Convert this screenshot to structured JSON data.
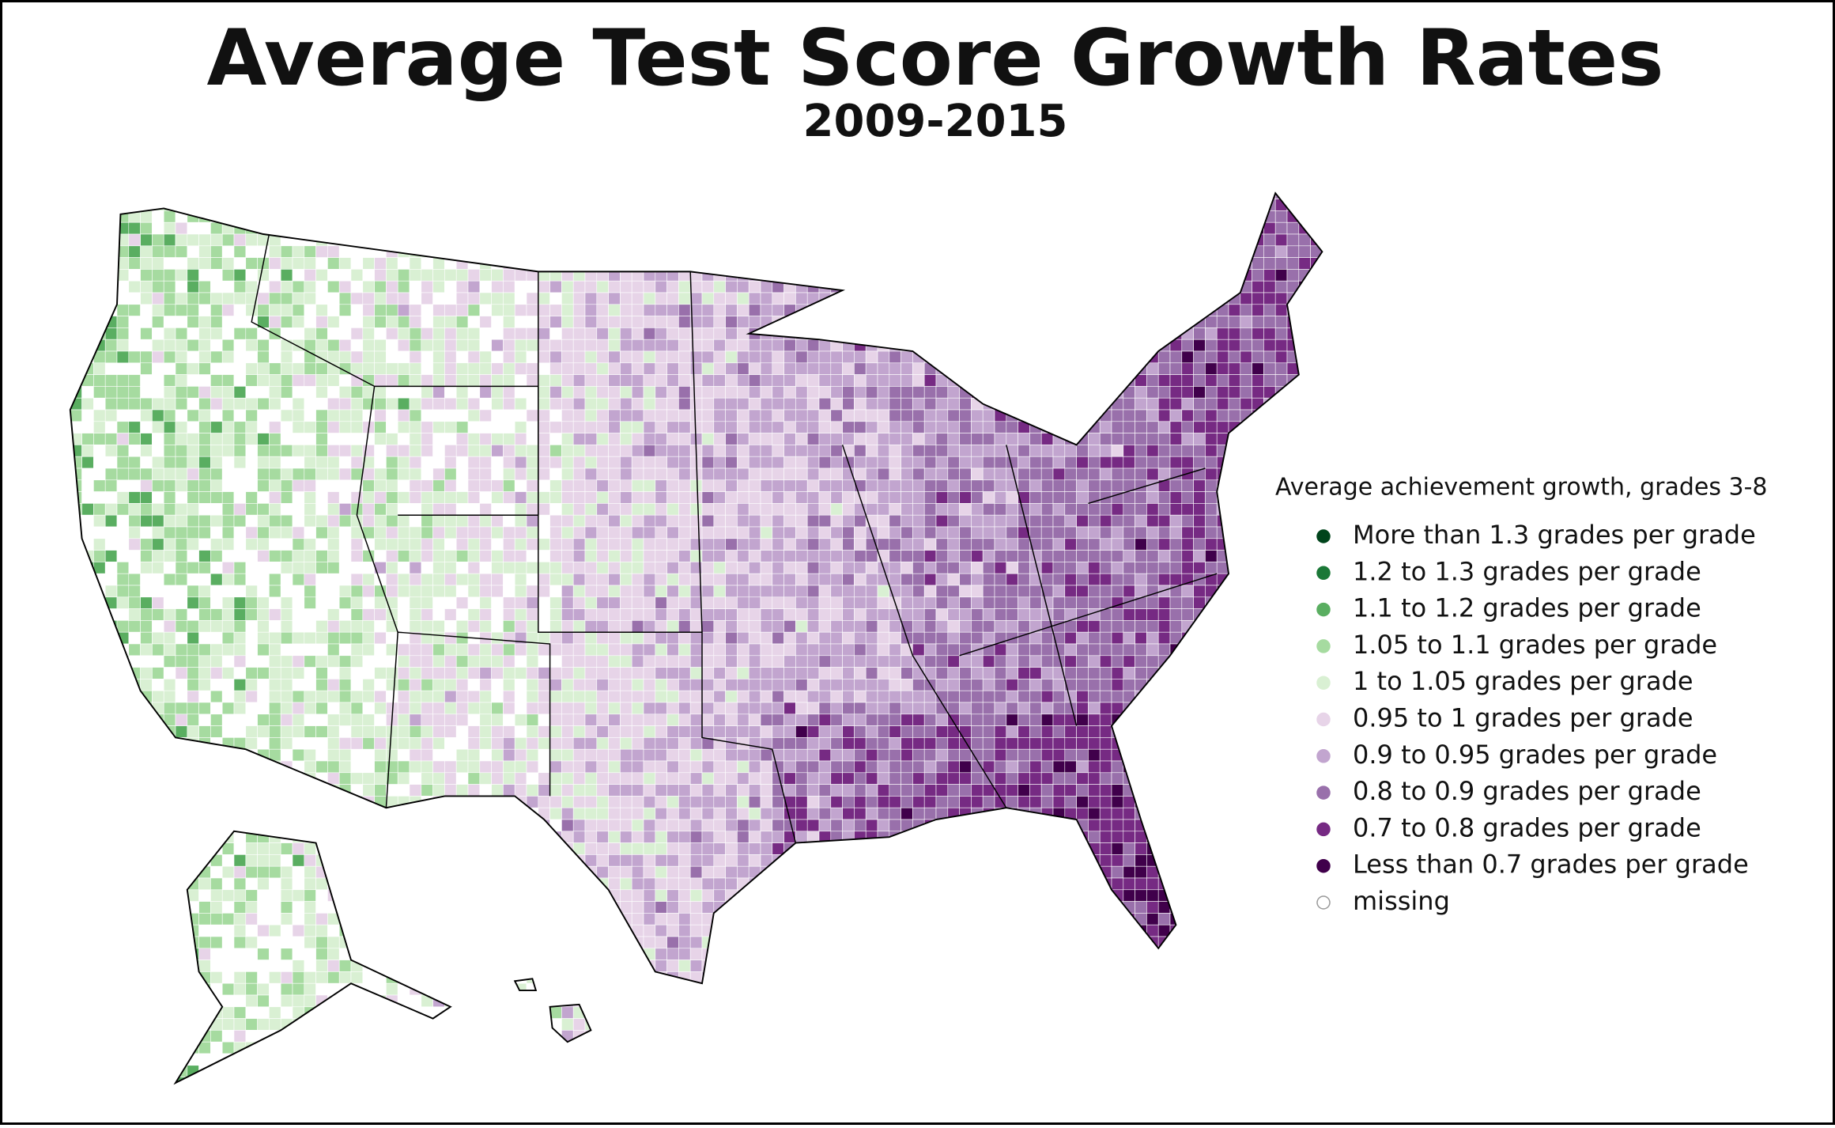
{
  "title": "Average Test Score Growth Rates",
  "subtitle": "2009-2015",
  "legend": {
    "title": "Average achievement growth, grades 3-8",
    "items": [
      {
        "label": "More than 1.3 grades per grade",
        "color": "#00441b"
      },
      {
        "label": "1.2 to 1.3 grades per grade",
        "color": "#1b7837"
      },
      {
        "label": "1.1 to 1.2 grades per grade",
        "color": "#5aae61"
      },
      {
        "label": "1.05 to 1.1 grades per grade",
        "color": "#a6dba0"
      },
      {
        "label": "1 to 1.05 grades per grade",
        "color": "#d9f0d3"
      },
      {
        "label": "0.95 to 1 grades per grade",
        "color": "#e7d4e8"
      },
      {
        "label": "0.9 to 0.95 grades per grade",
        "color": "#c2a5cf"
      },
      {
        "label": "0.8 to 0.9 grades per grade",
        "color": "#9970ab"
      },
      {
        "label": "0.7 to 0.8 grades per grade",
        "color": "#762a83"
      },
      {
        "label": "Less than 0.7 grades per grade",
        "color": "#40004b"
      },
      {
        "label": "missing",
        "color": "#ffffff"
      }
    ]
  }
}
